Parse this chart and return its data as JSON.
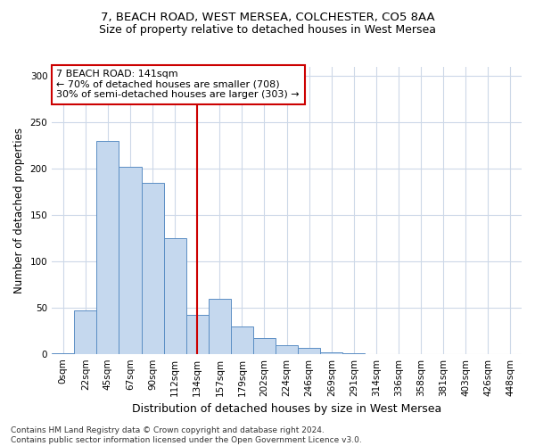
{
  "title_line1": "7, BEACH ROAD, WEST MERSEA, COLCHESTER, CO5 8AA",
  "title_line2": "Size of property relative to detached houses in West Mersea",
  "xlabel": "Distribution of detached houses by size in West Mersea",
  "ylabel": "Number of detached properties",
  "footer_line1": "Contains HM Land Registry data © Crown copyright and database right 2024.",
  "footer_line2": "Contains public sector information licensed under the Open Government Licence v3.0.",
  "categories": [
    "0sqm",
    "22sqm",
    "45sqm",
    "67sqm",
    "90sqm",
    "112sqm",
    "134sqm",
    "157sqm",
    "179sqm",
    "202sqm",
    "224sqm",
    "246sqm",
    "269sqm",
    "291sqm",
    "314sqm",
    "336sqm",
    "358sqm",
    "381sqm",
    "403sqm",
    "426sqm",
    "448sqm"
  ],
  "bar_values": [
    1,
    47,
    230,
    202,
    185,
    125,
    42,
    59,
    30,
    17,
    9,
    6,
    2,
    1,
    0,
    0,
    0,
    0,
    0,
    0,
    0
  ],
  "vline_x": 6.0,
  "annotation_text": "7 BEACH ROAD: 141sqm\n← 70% of detached houses are smaller (708)\n30% of semi-detached houses are larger (303) →",
  "bar_color": "#c5d8ee",
  "bar_edge_color": "#5b8ec4",
  "vline_color": "#cc0000",
  "annotation_box_color": "#cc0000",
  "background_color": "#ffffff",
  "grid_color": "#cdd8e8",
  "ylim": [
    0,
    310
  ],
  "yticks": [
    0,
    50,
    100,
    150,
    200,
    250,
    300
  ],
  "title1_fontsize": 9.5,
  "title2_fontsize": 9,
  "xlabel_fontsize": 9,
  "ylabel_fontsize": 8.5,
  "tick_fontsize": 7.5,
  "annotation_fontsize": 8,
  "footer_fontsize": 6.5
}
